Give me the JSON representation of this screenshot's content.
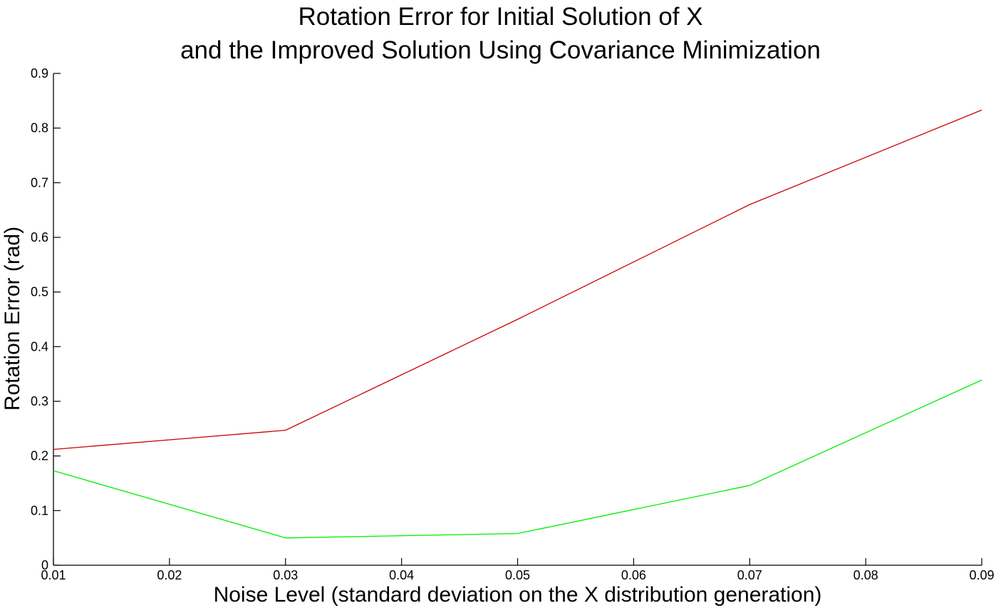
{
  "chart_data": {
    "type": "line",
    "title": [
      "Rotation Error for Initial Solution of X",
      "and the Improved Solution Using Covariance Minimization"
    ],
    "xlabel": "Noise Level (standard deviation on the X distribution generation)",
    "ylabel": "Rotation Error (rad)",
    "xlim": [
      0.01,
      0.09
    ],
    "ylim": [
      0,
      0.9
    ],
    "xticks": [
      "0.01",
      "0.02",
      "0.03",
      "0.04",
      "0.05",
      "0.06",
      "0.07",
      "0.08",
      "0.09"
    ],
    "yticks": [
      "0",
      "0.1",
      "0.2",
      "0.3",
      "0.4",
      "0.5",
      "0.6",
      "0.7",
      "0.8",
      "0.9"
    ],
    "grid": false,
    "legend": null,
    "x": [
      0.01,
      0.03,
      0.05,
      0.07,
      0.09
    ],
    "series": [
      {
        "values": [
          0.212,
          0.247,
          0.45,
          0.66,
          0.833
        ],
        "color": "#cc0000"
      },
      {
        "values": [
          0.173,
          0.05,
          0.058,
          0.146,
          0.339
        ],
        "color": "#00ee00"
      }
    ]
  }
}
